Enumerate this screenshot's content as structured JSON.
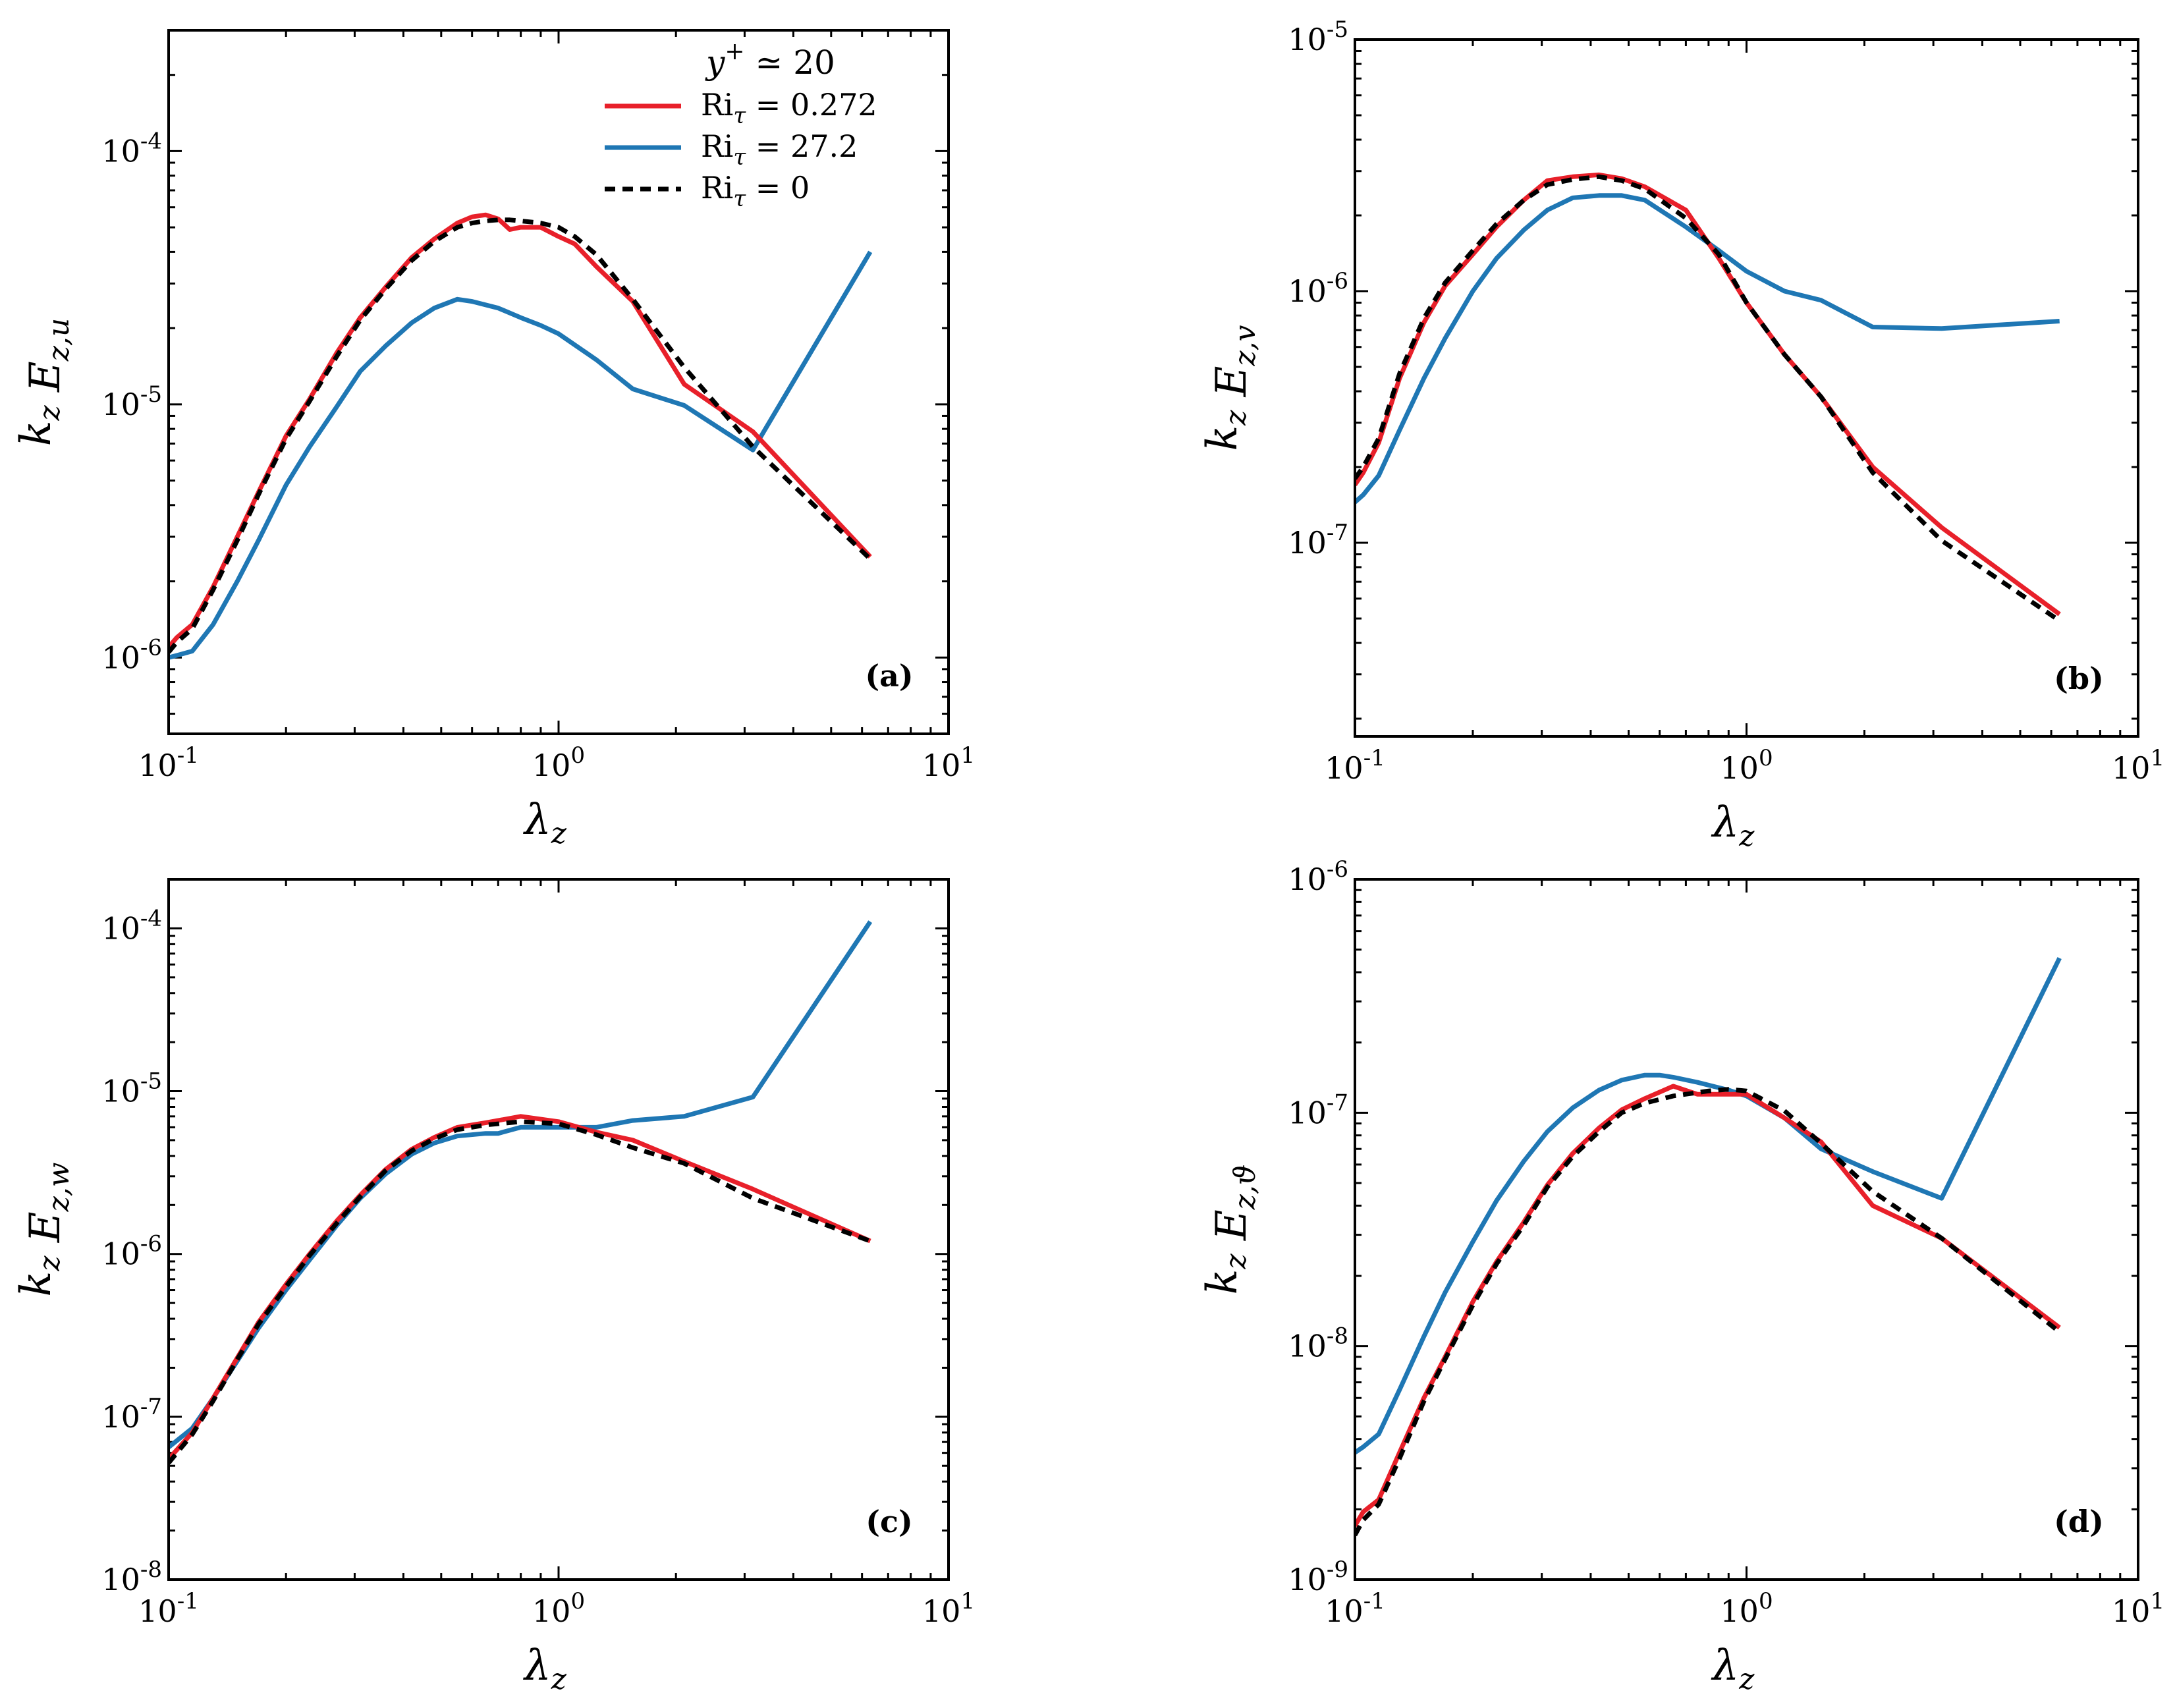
{
  "chart_data": [
    {
      "id": "a",
      "type": "line",
      "panel_label": "(a)",
      "xlabel": "λz",
      "ylabel": "kz Ez,u",
      "xscale": "log",
      "yscale": "log",
      "xlim": [
        0.1,
        10
      ],
      "ylim": [
        5e-07,
        0.0003
      ],
      "x_ticks": [
        {
          "v": 0.1,
          "label": "10-1"
        },
        {
          "v": 1,
          "label": "100"
        },
        {
          "v": 10,
          "label": "101"
        }
      ],
      "y_ticks": [
        {
          "v": 1e-06,
          "label": "10-6"
        },
        {
          "v": 1e-05,
          "label": "10-5"
        },
        {
          "v": 0.0001,
          "label": "10-4"
        }
      ],
      "legend": {
        "title": "y+ ≃ 20",
        "position": "top-right",
        "entries": [
          "Riτ = 0.272",
          "Riτ = 27.2",
          "Riτ = 0"
        ]
      },
      "series": [
        {
          "name": "Riτ = 0.272",
          "color": "#e8202a",
          "dash": "solid",
          "x": [
            0.1,
            0.105,
            0.115,
            0.13,
            0.15,
            0.17,
            0.2,
            0.23,
            0.27,
            0.31,
            0.36,
            0.42,
            0.48,
            0.55,
            0.6,
            0.65,
            0.7,
            0.75,
            0.8,
            0.9,
            1.0,
            1.1,
            1.25,
            1.55,
            2.1,
            3.15,
            6.3
          ],
          "y": [
            1.1e-06,
            1.2e-06,
            1.35e-06,
            1.9e-06,
            3e-06,
            4.5e-06,
            7.5e-06,
            1.05e-05,
            1.6e-05,
            2.2e-05,
            2.9e-05,
            3.8e-05,
            4.5e-05,
            5.2e-05,
            5.5e-05,
            5.6e-05,
            5.4e-05,
            4.9e-05,
            5e-05,
            5e-05,
            4.6e-05,
            4.3e-05,
            3.5e-05,
            2.55e-05,
            1.2e-05,
            7.8e-06,
            2.5e-06
          ]
        },
        {
          "name": "Riτ = 27.2",
          "color": "#1f77b4",
          "dash": "solid",
          "x": [
            0.1,
            0.105,
            0.115,
            0.13,
            0.15,
            0.17,
            0.2,
            0.23,
            0.27,
            0.31,
            0.36,
            0.42,
            0.48,
            0.55,
            0.6,
            0.7,
            0.8,
            0.9,
            1.0,
            1.25,
            1.55,
            2.1,
            3.15,
            6.3
          ],
          "y": [
            1e-06,
            1.02e-06,
            1.06e-06,
            1.35e-06,
            2e-06,
            2.9e-06,
            4.8e-06,
            6.8e-06,
            9.8e-06,
            1.35e-05,
            1.7e-05,
            2.1e-05,
            2.4e-05,
            2.6e-05,
            2.55e-05,
            2.4e-05,
            2.2e-05,
            2.05e-05,
            1.9e-05,
            1.5e-05,
            1.15e-05,
            9.9e-06,
            6.6e-06,
            4e-05
          ]
        },
        {
          "name": "Riτ = 0",
          "color": "#000000",
          "dash": "dashed",
          "x": [
            0.1,
            0.105,
            0.115,
            0.13,
            0.15,
            0.17,
            0.2,
            0.23,
            0.27,
            0.31,
            0.36,
            0.42,
            0.48,
            0.55,
            0.6,
            0.65,
            0.7,
            0.75,
            0.8,
            0.9,
            1.0,
            1.1,
            1.25,
            1.55,
            2.1,
            3.15,
            6.3
          ],
          "y": [
            1.05e-06,
            1.15e-06,
            1.3e-06,
            1.85e-06,
            2.9e-06,
            4.4e-06,
            7.3e-06,
            1.03e-05,
            1.55e-05,
            2.15e-05,
            2.85e-05,
            3.7e-05,
            4.4e-05,
            5e-05,
            5.2e-05,
            5.3e-05,
            5.35e-05,
            5.35e-05,
            5.3e-05,
            5.2e-05,
            5e-05,
            4.6e-05,
            3.9e-05,
            2.6e-05,
            1.4e-05,
            6.8e-06,
            2.45e-06
          ]
        }
      ]
    },
    {
      "id": "b",
      "type": "line",
      "panel_label": "(b)",
      "xlabel": "λz",
      "ylabel": "kz Ez,v",
      "xscale": "log",
      "yscale": "log",
      "xlim": [
        0.1,
        10
      ],
      "ylim": [
        1.7e-08,
        1e-05
      ],
      "x_ticks": [
        {
          "v": 0.1,
          "label": "10-1"
        },
        {
          "v": 1,
          "label": "100"
        },
        {
          "v": 10,
          "label": "101"
        }
      ],
      "y_ticks": [
        {
          "v": 1e-07,
          "label": "10-7"
        },
        {
          "v": 1e-06,
          "label": "10-6"
        },
        {
          "v": 1e-05,
          "label": "10-5"
        }
      ],
      "series": [
        {
          "name": "Riτ = 0.272",
          "color": "#e8202a",
          "dash": "solid",
          "x": [
            0.1,
            0.105,
            0.115,
            0.13,
            0.15,
            0.17,
            0.2,
            0.23,
            0.27,
            0.31,
            0.36,
            0.42,
            0.48,
            0.55,
            0.7,
            0.85,
            1.0,
            1.25,
            1.55,
            2.1,
            3.15,
            6.3
          ],
          "y": [
            1.7e-07,
            1.9e-07,
            2.5e-07,
            4.5e-07,
            7.5e-07,
            1.05e-06,
            1.4e-06,
            1.8e-06,
            2.3e-06,
            2.75e-06,
            2.85e-06,
            2.9e-06,
            2.8e-06,
            2.6e-06,
            2.1e-06,
            1.35e-06,
            9e-07,
            5.6e-07,
            3.8e-07,
            2e-07,
            1.15e-07,
            5.2e-08
          ]
        },
        {
          "name": "Riτ = 27.2",
          "color": "#1f77b4",
          "dash": "solid",
          "x": [
            0.1,
            0.105,
            0.115,
            0.13,
            0.15,
            0.17,
            0.2,
            0.23,
            0.27,
            0.31,
            0.36,
            0.42,
            0.48,
            0.55,
            0.7,
            0.85,
            1.0,
            1.25,
            1.55,
            2.1,
            3.15,
            6.3
          ],
          "y": [
            1.45e-07,
            1.55e-07,
            1.85e-07,
            2.8e-07,
            4.5e-07,
            6.5e-07,
            1e-06,
            1.35e-06,
            1.75e-06,
            2.1e-06,
            2.35e-06,
            2.4e-06,
            2.4e-06,
            2.3e-06,
            1.8e-06,
            1.45e-06,
            1.2e-06,
            1e-06,
            9.2e-07,
            7.2e-07,
            7.1e-07,
            7.6e-07
          ]
        },
        {
          "name": "Riτ = 0",
          "color": "#000000",
          "dash": "dashed",
          "x": [
            0.1,
            0.105,
            0.115,
            0.13,
            0.15,
            0.17,
            0.2,
            0.23,
            0.27,
            0.31,
            0.36,
            0.42,
            0.48,
            0.55,
            0.7,
            0.85,
            1.0,
            1.25,
            1.55,
            2.1,
            3.15,
            6.3
          ],
          "y": [
            1.8e-07,
            2e-07,
            2.6e-07,
            4.7e-07,
            7.8e-07,
            1.08e-06,
            1.45e-06,
            1.85e-06,
            2.3e-06,
            2.65e-06,
            2.78e-06,
            2.85e-06,
            2.75e-06,
            2.55e-06,
            1.95e-06,
            1.4e-06,
            9e-07,
            5.6e-07,
            3.8e-07,
            1.9e-07,
            1.02e-07,
            4.9e-08
          ]
        }
      ]
    },
    {
      "id": "c",
      "type": "line",
      "panel_label": "(c)",
      "xlabel": "λz",
      "ylabel": "kz Ez,w",
      "xscale": "log",
      "yscale": "log",
      "xlim": [
        0.1,
        10
      ],
      "ylim": [
        1e-08,
        0.0002
      ],
      "x_ticks": [
        {
          "v": 0.1,
          "label": "10-1"
        },
        {
          "v": 1,
          "label": "100"
        },
        {
          "v": 10,
          "label": "101"
        }
      ],
      "y_ticks": [
        {
          "v": 1e-08,
          "label": "10-8"
        },
        {
          "v": 1e-07,
          "label": "10-7"
        },
        {
          "v": 1e-06,
          "label": "10-6"
        },
        {
          "v": 1e-05,
          "label": "10-5"
        },
        {
          "v": 0.0001,
          "label": "10-4"
        }
      ],
      "series": [
        {
          "name": "Riτ = 0.272",
          "color": "#e8202a",
          "dash": "solid",
          "x": [
            0.1,
            0.115,
            0.13,
            0.15,
            0.17,
            0.2,
            0.23,
            0.27,
            0.31,
            0.36,
            0.42,
            0.48,
            0.55,
            0.65,
            0.8,
            1.0,
            1.25,
            1.55,
            2.1,
            3.15,
            6.3
          ],
          "y": [
            5.5e-08,
            8e-08,
            1.3e-07,
            2.3e-07,
            3.8e-07,
            6.5e-07,
            1e-06,
            1.6e-06,
            2.3e-06,
            3.3e-06,
            4.4e-06,
            5.2e-06,
            6e-06,
            6.4e-06,
            7e-06,
            6.5e-06,
            5.6e-06,
            5e-06,
            3.7e-06,
            2.5e-06,
            1.2e-06
          ]
        },
        {
          "name": "Riτ = 27.2",
          "color": "#1f77b4",
          "dash": "solid",
          "x": [
            0.1,
            0.115,
            0.13,
            0.15,
            0.17,
            0.2,
            0.23,
            0.27,
            0.31,
            0.36,
            0.42,
            0.48,
            0.55,
            0.65,
            0.7,
            0.8,
            1.0,
            1.25,
            1.55,
            2.1,
            3.15,
            6.3
          ],
          "y": [
            6.5e-08,
            8.5e-08,
            1.3e-07,
            2.2e-07,
            3.5e-07,
            6e-07,
            9.2e-07,
            1.5e-06,
            2.2e-06,
            3.1e-06,
            4.1e-06,
            4.8e-06,
            5.3e-06,
            5.5e-06,
            5.5e-06,
            6e-06,
            6e-06,
            6e-06,
            6.6e-06,
            7e-06,
            9.2e-06,
            0.00011
          ]
        },
        {
          "name": "Riτ = 0",
          "color": "#000000",
          "dash": "dashed",
          "x": [
            0.1,
            0.115,
            0.13,
            0.15,
            0.17,
            0.2,
            0.23,
            0.27,
            0.31,
            0.36,
            0.42,
            0.48,
            0.55,
            0.65,
            0.8,
            1.0,
            1.25,
            1.55,
            2.1,
            3.15,
            6.3
          ],
          "y": [
            5.2e-08,
            7.8e-08,
            1.25e-07,
            2.25e-07,
            3.7e-07,
            6.3e-07,
            9.8e-07,
            1.55e-06,
            2.25e-06,
            3.25e-06,
            4.3e-06,
            5.1e-06,
            5.8e-06,
            6.2e-06,
            6.5e-06,
            6.3e-06,
            5.4e-06,
            4.5e-06,
            3.6e-06,
            2.2e-06,
            1.2e-06
          ]
        }
      ]
    },
    {
      "id": "d",
      "type": "line",
      "panel_label": "(d)",
      "xlabel": "λz",
      "ylabel": "kz Ez,ϑ",
      "xscale": "log",
      "yscale": "log",
      "xlim": [
        0.1,
        10
      ],
      "ylim": [
        1e-09,
        1e-06
      ],
      "x_ticks": [
        {
          "v": 0.1,
          "label": "10-1"
        },
        {
          "v": 1,
          "label": "100"
        },
        {
          "v": 10,
          "label": "101"
        }
      ],
      "y_ticks": [
        {
          "v": 1e-09,
          "label": "10-9"
        },
        {
          "v": 1e-08,
          "label": "10-8"
        },
        {
          "v": 1e-07,
          "label": "10-7"
        },
        {
          "v": 1e-06,
          "label": "10-6"
        }
      ],
      "series": [
        {
          "name": "Riτ = 0.272",
          "color": "#e8202a",
          "dash": "solid",
          "x": [
            0.1,
            0.105,
            0.115,
            0.13,
            0.15,
            0.17,
            0.2,
            0.23,
            0.27,
            0.31,
            0.36,
            0.42,
            0.48,
            0.55,
            0.65,
            0.75,
            0.8,
            0.9,
            1.0,
            1.25,
            1.55,
            2.1,
            3.15,
            6.3
          ],
          "y": [
            1.7e-09,
            1.95e-09,
            2.2e-09,
            3.5e-09,
            6e-09,
            9e-09,
            1.55e-08,
            2.3e-08,
            3.4e-08,
            4.9e-08,
            6.7e-08,
            8.6e-08,
            1.03e-07,
            1.15e-07,
            1.3e-07,
            1.2e-07,
            1.2e-07,
            1.2e-07,
            1.2e-07,
            9.5e-08,
            7.5e-08,
            4e-08,
            2.9e-08,
            1.2e-08
          ]
        },
        {
          "name": "Riτ = 27.2",
          "color": "#1f77b4",
          "dash": "solid",
          "x": [
            0.1,
            0.105,
            0.115,
            0.13,
            0.15,
            0.17,
            0.2,
            0.23,
            0.27,
            0.31,
            0.36,
            0.42,
            0.48,
            0.55,
            0.6,
            0.65,
            0.75,
            0.9,
            1.0,
            1.25,
            1.55,
            2.1,
            3.15,
            6.3
          ],
          "y": [
            3.5e-09,
            3.7e-09,
            4.2e-09,
            6.5e-09,
            1.1e-08,
            1.7e-08,
            2.8e-08,
            4.2e-08,
            6.2e-08,
            8.3e-08,
            1.05e-07,
            1.25e-07,
            1.38e-07,
            1.45e-07,
            1.45e-07,
            1.42e-07,
            1.35e-07,
            1.25e-07,
            1.18e-07,
            9.5e-08,
            7e-08,
            5.6e-08,
            4.3e-08,
            4.6e-07
          ]
        },
        {
          "name": "Riτ = 0",
          "color": "#000000",
          "dash": "dashed",
          "x": [
            0.1,
            0.105,
            0.115,
            0.13,
            0.15,
            0.17,
            0.2,
            0.23,
            0.27,
            0.31,
            0.36,
            0.42,
            0.48,
            0.55,
            0.65,
            0.75,
            0.8,
            0.9,
            1.0,
            1.25,
            1.55,
            2.1,
            3.15,
            6.3
          ],
          "y": [
            1.55e-09,
            1.8e-09,
            2.1e-09,
            3.3e-09,
            5.8e-09,
            8.8e-09,
            1.5e-08,
            2.25e-08,
            3.3e-08,
            4.8e-08,
            6.5e-08,
            8.3e-08,
            1e-07,
            1.1e-07,
            1.18e-07,
            1.22e-07,
            1.24e-07,
            1.26e-07,
            1.24e-07,
            1.02e-07,
            7.4e-08,
            4.6e-08,
            2.9e-08,
            1.15e-08
          ]
        }
      ]
    }
  ]
}
